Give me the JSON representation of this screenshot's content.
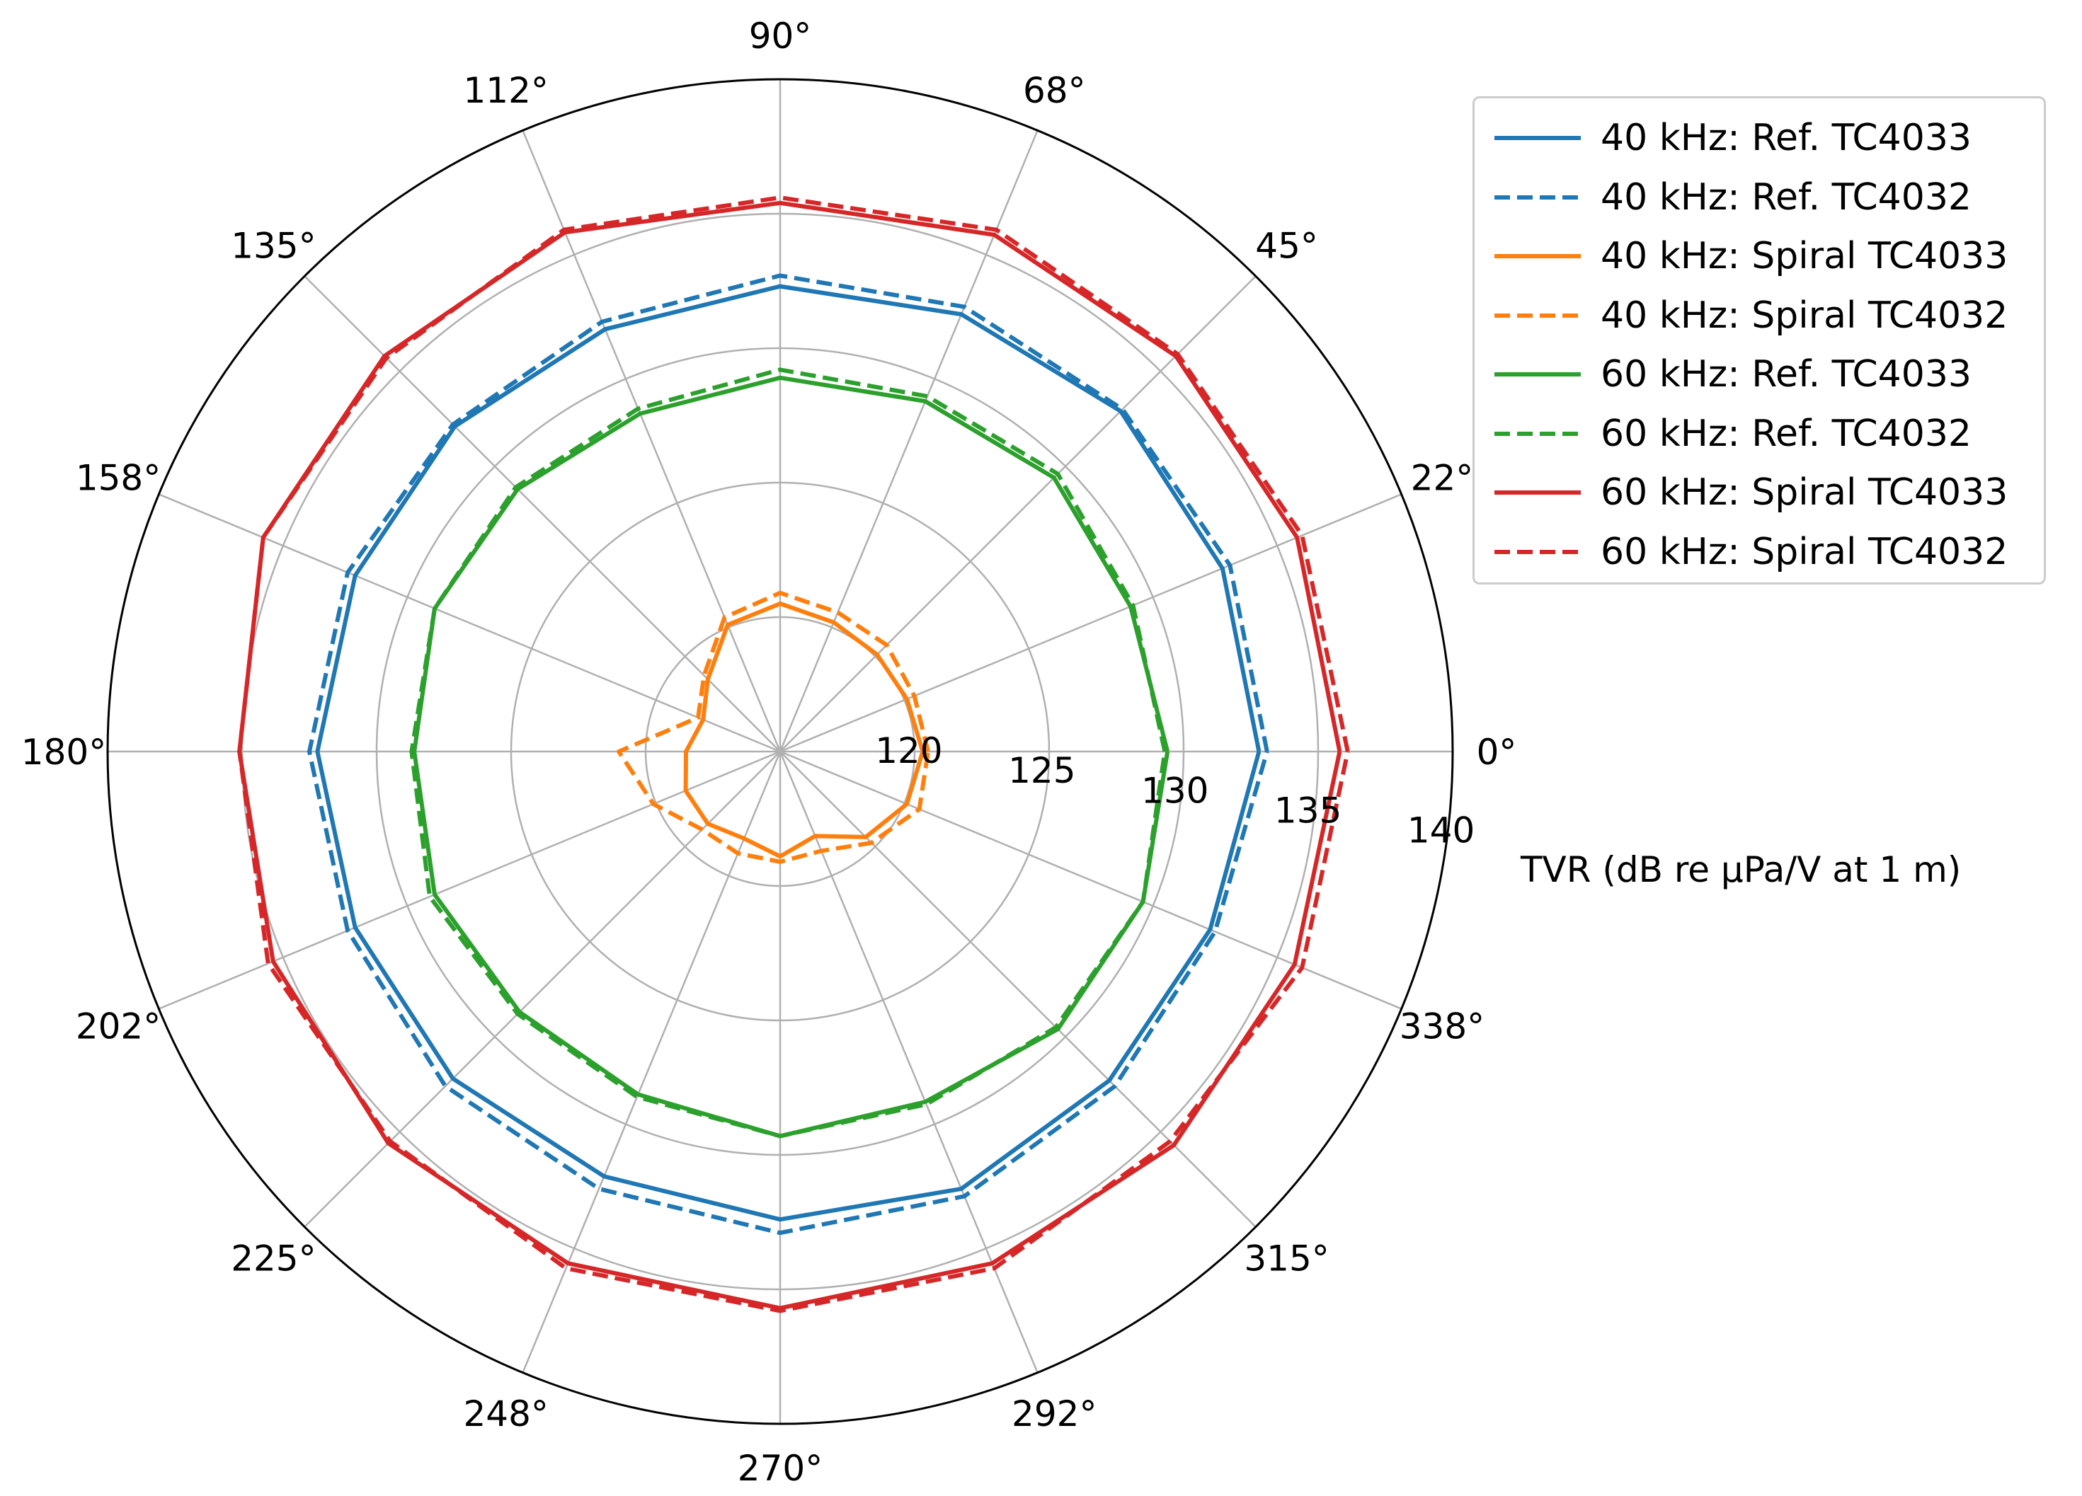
{
  "chart_data": {
    "type": "polar-line",
    "title": "",
    "radial_axis_label": "TVR (dB re µPa/V at 1 m)",
    "radial_range": [
      115,
      140
    ],
    "radial_ticks": [
      "120",
      "125",
      "130",
      "135",
      "140"
    ],
    "radial_tick_values": [
      120,
      125,
      130,
      135,
      140
    ],
    "angle_ticks_deg": [
      0,
      22.5,
      45,
      67.5,
      90,
      112.5,
      135,
      157.5,
      180,
      202.5,
      225,
      247.5,
      270,
      292.5,
      315,
      337.5
    ],
    "angle_tick_labels": [
      "0°",
      "22°",
      "45°",
      "68°",
      "90°",
      "112°",
      "135°",
      "158°",
      "180°",
      "202°",
      "225°",
      "248°",
      "270°",
      "292°",
      "315°",
      "338°"
    ],
    "angles_deg": [
      0,
      22.5,
      45,
      67.5,
      90,
      112.5,
      135,
      157.5,
      180,
      202.5,
      225,
      247.5,
      270,
      292.5,
      315,
      337.5
    ],
    "series": [
      {
        "name": "40 kHz: Ref. TC4033",
        "style": "solid",
        "color": "#1f77b4",
        "values": [
          132.8,
          132.8,
          132.9,
          132.6,
          132.3,
          132.0,
          132.1,
          132.1,
          132.2,
          132.1,
          132.2,
          132.1,
          132.4,
          132.6,
          132.3,
          132.3
        ]
      },
      {
        "name": "40 kHz: Ref. TC4032",
        "style": "dashed",
        "color": "#1f77b4",
        "values": [
          133.1,
          133.1,
          133.0,
          132.9,
          132.7,
          132.3,
          132.2,
          132.4,
          132.5,
          132.4,
          132.6,
          132.6,
          132.9,
          132.9,
          132.6,
          132.5
        ]
      },
      {
        "name": "40 kHz: Spiral TC4033",
        "style": "solid",
        "color": "#ff7f0e",
        "values": [
          120.3,
          120.1,
          120.1,
          120.2,
          120.5,
          120.1,
          118.8,
          118.1,
          118.5,
          118.8,
          118.8,
          118.5,
          118.9,
          118.4,
          119.5,
          120.1
        ]
      },
      {
        "name": "40 kHz: Spiral TC4032",
        "style": "dashed",
        "color": "#ff7f0e",
        "values": [
          120.5,
          120.4,
          120.6,
          120.6,
          120.9,
          120.4,
          119.0,
          118.3,
          121.0,
          120.1,
          119.1,
          119.1,
          119.1,
          119.0,
          119.8,
          120.6
        ]
      },
      {
        "name": "60 kHz: Ref. TC4033",
        "style": "solid",
        "color": "#2ca02c",
        "values": [
          129.4,
          129.1,
          129.4,
          129.1,
          128.9,
          128.6,
          128.8,
          128.9,
          128.6,
          128.9,
          128.7,
          128.8,
          129.3,
          129.1,
          129.6,
          129.6
        ]
      },
      {
        "name": "60 kHz: Ref. TC4032",
        "style": "dashed",
        "color": "#2ca02c",
        "values": [
          129.3,
          129.2,
          129.6,
          129.3,
          129.2,
          128.8,
          128.9,
          128.9,
          128.7,
          129.1,
          128.8,
          128.9,
          129.3,
          129.2,
          129.5,
          129.6
        ]
      },
      {
        "name": "60 kHz: Spiral TC4033",
        "style": "solid",
        "color": "#d62728",
        "values": [
          135.8,
          135.8,
          135.8,
          135.8,
          135.4,
          135.9,
          135.8,
          135.8,
          135.1,
          135.4,
          135.6,
          135.6,
          135.7,
          135.6,
          135.7,
          135.7
        ]
      },
      {
        "name": "60 kHz: Spiral TC4032",
        "style": "dashed",
        "color": "#d62728",
        "values": [
          136.1,
          136.0,
          135.9,
          136.0,
          135.6,
          136.0,
          135.7,
          135.8,
          135.1,
          135.6,
          135.5,
          135.8,
          135.8,
          135.8,
          135.5,
          136.0
        ]
      }
    ],
    "legend_position": "upper-right outside",
    "grid": true
  }
}
